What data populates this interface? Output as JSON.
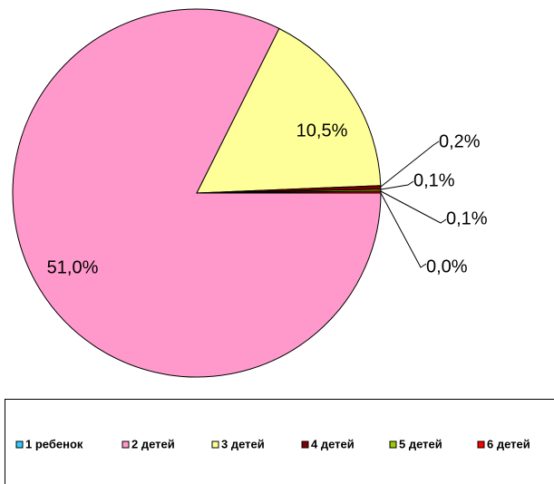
{
  "chart_data": {
    "type": "pie",
    "categories": [
      "1 ребенок",
      "2 детей",
      "3 детей",
      "4 детей",
      "5 детей",
      "6 детей"
    ],
    "values": [
      0.0,
      51.0,
      10.5,
      0.2,
      0.1,
      0.1
    ],
    "value_labels": [
      "0,0%",
      "51,0%",
      "10,5%",
      "0,2%",
      "0,1%",
      "0,1%"
    ],
    "colors": [
      "#33ccff",
      "#ff99cc",
      "#ffff99",
      "#800000",
      "#99cc00",
      "#ff0000"
    ],
    "legend": "bottom"
  }
}
